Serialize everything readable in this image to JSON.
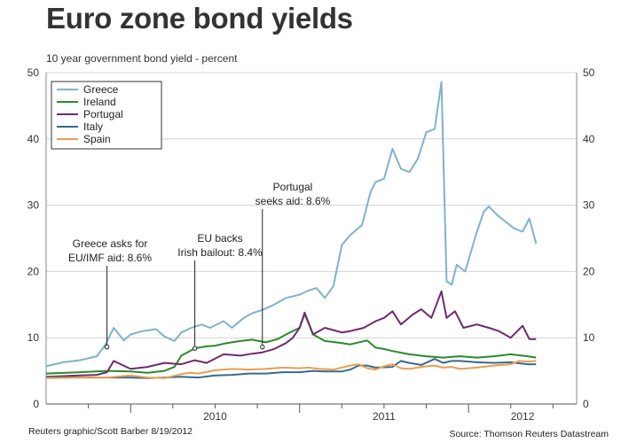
{
  "title": "Euro zone bond yields",
  "subtitle": "10 year government bond yield - percent",
  "footer": {
    "credit": "Reuters graphic/Scott Barber 8/19/2012",
    "source": "Source: Thomson Reuters Datastream"
  },
  "chart_data": {
    "type": "line",
    "title": "Euro zone bond yields",
    "ylabel": "10 year government bond yield - percent",
    "xlabel": "",
    "xlim": [
      2009.5,
      2012.64
    ],
    "ylim": [
      0,
      50
    ],
    "yticks": [
      "0",
      "10",
      "20",
      "30",
      "40",
      "50"
    ],
    "xtick_labels": [
      {
        "label": "2010",
        "at": 2010.0
      },
      {
        "label": "2011",
        "at": 2011.0
      },
      {
        "label": "2012",
        "at": 2012.0
      }
    ],
    "grid": true,
    "legend_position": "top-left",
    "series": [
      {
        "name": "Greece",
        "color": "#7fb2cc",
        "x": [
          2009.5,
          2009.6,
          2009.7,
          2009.8,
          2009.85,
          2009.9,
          2009.96,
          2010.0,
          2010.07,
          2010.15,
          2010.2,
          2010.26,
          2010.3,
          2010.36,
          2010.42,
          2010.47,
          2010.55,
          2010.6,
          2010.67,
          2010.72,
          2010.78,
          2010.85,
          2010.92,
          2011.0,
          2011.05,
          2011.1,
          2011.15,
          2011.2,
          2011.25,
          2011.3,
          2011.37,
          2011.42,
          2011.45,
          2011.5,
          2011.55,
          2011.6,
          2011.65,
          2011.7,
          2011.75,
          2011.8,
          2011.84,
          2011.87,
          2011.9,
          2011.93,
          2011.98,
          2012.05,
          2012.09,
          2012.12,
          2012.17,
          2012.22,
          2012.27,
          2012.32,
          2012.36,
          2012.4
        ],
        "values": [
          5.7,
          6.3,
          6.6,
          7.2,
          8.9,
          11.5,
          9.6,
          10.5,
          11.0,
          11.3,
          10.2,
          9.5,
          10.8,
          11.5,
          12.0,
          11.5,
          12.5,
          11.5,
          13.0,
          13.7,
          14.2,
          15.0,
          16.0,
          16.5,
          17.1,
          17.5,
          16.0,
          17.8,
          24.0,
          25.5,
          27.0,
          32.0,
          33.5,
          34.0,
          38.5,
          35.5,
          35.0,
          37.0,
          41.0,
          41.5,
          48.6,
          18.5,
          18.0,
          21.0,
          20.0,
          26.0,
          29.0,
          29.8,
          28.5,
          27.5,
          26.5,
          26.0,
          28.0,
          24.2
        ]
      },
      {
        "name": "Ireland",
        "color": "#2a8a2a",
        "x": [
          2009.5,
          2009.7,
          2009.86,
          2010.0,
          2010.1,
          2010.2,
          2010.26,
          2010.3,
          2010.38,
          2010.45,
          2010.5,
          2010.57,
          2010.65,
          2010.72,
          2010.8,
          2010.87,
          2010.92,
          2010.96,
          2011.0,
          2011.03,
          2011.08,
          2011.15,
          2011.25,
          2011.3,
          2011.4,
          2011.45,
          2011.5,
          2011.55,
          2011.65,
          2011.75,
          2011.85,
          2011.95,
          2012.05,
          2012.15,
          2012.25,
          2012.35,
          2012.4
        ],
        "values": [
          4.6,
          4.8,
          5.0,
          4.9,
          4.7,
          5.0,
          5.6,
          7.3,
          8.4,
          8.7,
          8.8,
          9.2,
          9.5,
          9.7,
          9.3,
          9.8,
          10.5,
          11.0,
          11.5,
          13.6,
          10.5,
          9.5,
          9.2,
          9.0,
          9.6,
          8.5,
          8.3,
          8.0,
          7.5,
          7.2,
          7.0,
          7.2,
          7.0,
          7.2,
          7.5,
          7.2,
          7.0
        ]
      },
      {
        "name": "Portugal",
        "color": "#6f2a6f",
        "x": [
          2009.5,
          2009.7,
          2009.8,
          2009.86,
          2009.9,
          2010.0,
          2010.1,
          2010.2,
          2010.3,
          2010.38,
          2010.45,
          2010.55,
          2010.65,
          2010.72,
          2010.78,
          2010.85,
          2010.92,
          2010.96,
          2011.0,
          2011.03,
          2011.08,
          2011.15,
          2011.25,
          2011.3,
          2011.38,
          2011.45,
          2011.5,
          2011.55,
          2011.6,
          2011.67,
          2011.72,
          2011.78,
          2011.84,
          2011.87,
          2011.92,
          2011.97,
          2012.05,
          2012.12,
          2012.18,
          2012.25,
          2012.32,
          2012.36,
          2012.4
        ],
        "values": [
          4.1,
          4.3,
          4.4,
          4.8,
          6.5,
          5.3,
          5.6,
          6.2,
          6.0,
          6.6,
          6.2,
          7.5,
          7.3,
          7.6,
          7.8,
          8.3,
          9.2,
          10.0,
          11.5,
          13.8,
          10.5,
          11.5,
          10.8,
          11.0,
          11.5,
          12.5,
          13.0,
          14.0,
          12.0,
          13.5,
          14.3,
          13.0,
          17.0,
          13.0,
          14.0,
          11.5,
          12.0,
          11.5,
          11.0,
          10.0,
          11.8,
          9.8,
          9.8
        ]
      },
      {
        "name": "Italy",
        "color": "#3a6a8a",
        "x": [
          2009.5,
          2009.7,
          2009.86,
          2010.0,
          2010.1,
          2010.2,
          2010.3,
          2010.4,
          2010.5,
          2010.6,
          2010.7,
          2010.8,
          2010.9,
          2011.0,
          2011.08,
          2011.15,
          2011.25,
          2011.3,
          2011.35,
          2011.4,
          2011.45,
          2011.55,
          2011.6,
          2011.65,
          2011.72,
          2011.8,
          2011.85,
          2011.9,
          2011.95,
          2012.05,
          2012.15,
          2012.25,
          2012.35,
          2012.4
        ],
        "values": [
          4.1,
          4.0,
          4.0,
          4.0,
          3.9,
          4.0,
          4.1,
          4.0,
          4.3,
          4.4,
          4.6,
          4.6,
          4.8,
          4.8,
          5.0,
          4.9,
          4.9,
          5.2,
          5.8,
          5.8,
          5.5,
          5.6,
          6.5,
          6.2,
          5.9,
          6.8,
          6.2,
          6.5,
          6.5,
          6.3,
          6.2,
          6.3,
          6.0,
          6.0
        ]
      },
      {
        "name": "Spain",
        "color": "#e8a050",
        "x": [
          2009.5,
          2009.7,
          2009.86,
          2010.0,
          2010.1,
          2010.2,
          2010.3,
          2010.35,
          2010.4,
          2010.5,
          2010.6,
          2010.7,
          2010.8,
          2010.9,
          2011.0,
          2011.05,
          2011.12,
          2011.2,
          2011.25,
          2011.3,
          2011.35,
          2011.4,
          2011.45,
          2011.5,
          2011.55,
          2011.6,
          2011.65,
          2011.72,
          2011.8,
          2011.85,
          2011.9,
          2011.95,
          2012.05,
          2012.15,
          2012.25,
          2012.3,
          2012.35,
          2012.4
        ],
        "values": [
          3.9,
          4.0,
          4.0,
          4.3,
          4.0,
          3.9,
          4.5,
          4.7,
          4.6,
          5.1,
          5.3,
          5.2,
          5.3,
          5.5,
          5.4,
          5.5,
          5.3,
          5.2,
          5.5,
          5.8,
          6.0,
          5.4,
          5.2,
          5.7,
          6.0,
          5.4,
          5.3,
          5.6,
          5.8,
          5.5,
          5.6,
          5.3,
          5.5,
          5.8,
          6.0,
          6.5,
          6.4,
          6.5
        ]
      }
    ],
    "annotations": [
      {
        "lines": [
          "Greece asks for",
          "EU/IMF aid: 8.6%"
        ],
        "x": 2009.86,
        "y": 8.6
      },
      {
        "lines": [
          "EU backs",
          "Irish bailout: 8.4%"
        ],
        "x": 2010.38,
        "y": 8.4
      },
      {
        "lines": [
          "Portugal",
          "seeks aid: 8.6%"
        ],
        "x": 2010.78,
        "y": 8.6
      }
    ]
  }
}
